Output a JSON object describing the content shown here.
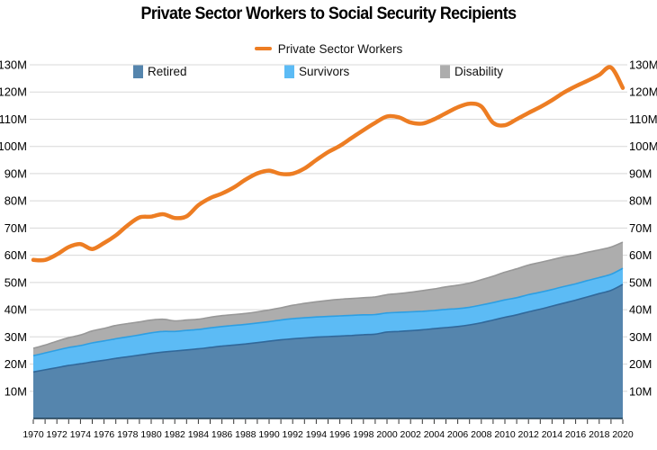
{
  "title": "Private Sector Workers to Social Security Recipients",
  "chart_data": {
    "type": "area",
    "title": "Private Sector Workers to Social Security Recipients",
    "unit": "M",
    "x_start_year": 1970,
    "x_end_year": 2020,
    "x_label_step": 2,
    "ylim": [
      0,
      130
    ],
    "y_tick_labels": [
      "10M",
      "20M",
      "30M",
      "40M",
      "50M",
      "60M",
      "70M",
      "80M",
      "90M",
      "100M",
      "110M",
      "120M",
      "130M"
    ],
    "y_tick_values": [
      10,
      20,
      30,
      40,
      50,
      60,
      70,
      80,
      90,
      100,
      110,
      120,
      130
    ],
    "grid": true,
    "grid_color": "#D8D8D8",
    "axis_line_color": "#1C3A4E",
    "tick_color": "#333333",
    "legend_position": "top",
    "line_series": {
      "name": "Private Sector Workers",
      "color": "#ED7D23",
      "values": [
        58.3,
        58.3,
        60.3,
        63.0,
        64.1,
        62.3,
        64.5,
        67.3,
        71.0,
        73.9,
        74.2,
        75.1,
        73.7,
        74.3,
        78.4,
        81.0,
        82.7,
        84.9,
        87.8,
        90.1,
        91.1,
        89.9,
        90.0,
        91.9,
        95.0,
        97.9,
        100.2,
        103.1,
        106.0,
        108.7,
        111.0,
        110.7,
        108.8,
        108.4,
        110.0,
        112.2,
        114.4,
        115.7,
        114.7,
        108.7,
        107.8,
        110.0,
        112.3,
        114.5,
        117.0,
        119.8,
        122.1,
        124.1,
        126.3,
        129.0,
        121.5
      ]
    },
    "stacked_series": [
      {
        "name": "Retired",
        "fill": "#5585AD",
        "edge": "#31689A",
        "values": [
          17.1,
          17.9,
          18.7,
          19.5,
          20.1,
          20.8,
          21.4,
          22.1,
          22.7,
          23.3,
          23.9,
          24.4,
          24.8,
          25.2,
          25.6,
          26.1,
          26.6,
          27.0,
          27.4,
          27.9,
          28.4,
          28.9,
          29.3,
          29.6,
          29.9,
          30.1,
          30.3,
          30.5,
          30.8,
          31.0,
          31.8,
          32.0,
          32.3,
          32.6,
          33.0,
          33.4,
          33.8,
          34.4,
          35.2,
          36.2,
          37.2,
          38.1,
          39.2,
          40.2,
          41.3,
          42.4,
          43.5,
          44.7,
          45.9,
          47.1,
          49.3
        ]
      },
      {
        "name": "Survivors",
        "fill": "#5CBBF5",
        "edge": "#2D9FE3",
        "values": [
          6.0,
          6.2,
          6.4,
          6.6,
          6.7,
          7.0,
          7.1,
          7.2,
          7.3,
          7.4,
          7.6,
          7.6,
          7.2,
          7.2,
          7.1,
          7.2,
          7.2,
          7.2,
          7.2,
          7.2,
          7.2,
          7.3,
          7.4,
          7.4,
          7.4,
          7.4,
          7.4,
          7.4,
          7.3,
          7.2,
          7.0,
          7.0,
          6.9,
          6.8,
          6.7,
          6.7,
          6.6,
          6.5,
          6.5,
          6.4,
          6.4,
          6.3,
          6.3,
          6.2,
          6.1,
          6.1,
          6.0,
          6.0,
          5.9,
          5.9,
          5.9
        ]
      },
      {
        "name": "Disability",
        "fill": "#ADADAD",
        "edge": "#989898",
        "values": [
          2.7,
          2.9,
          3.3,
          3.6,
          3.9,
          4.4,
          4.6,
          4.9,
          4.9,
          4.8,
          4.7,
          4.5,
          3.9,
          3.8,
          3.8,
          3.9,
          4.0,
          4.0,
          4.0,
          4.1,
          4.3,
          4.5,
          4.9,
          5.3,
          5.6,
          5.9,
          6.1,
          6.2,
          6.3,
          6.5,
          6.7,
          6.9,
          7.2,
          7.6,
          7.9,
          8.3,
          8.6,
          8.9,
          9.3,
          9.7,
          10.2,
          10.6,
          10.9,
          11.0,
          11.0,
          10.9,
          10.6,
          10.4,
          10.2,
          10.0,
          9.6
        ]
      }
    ]
  }
}
